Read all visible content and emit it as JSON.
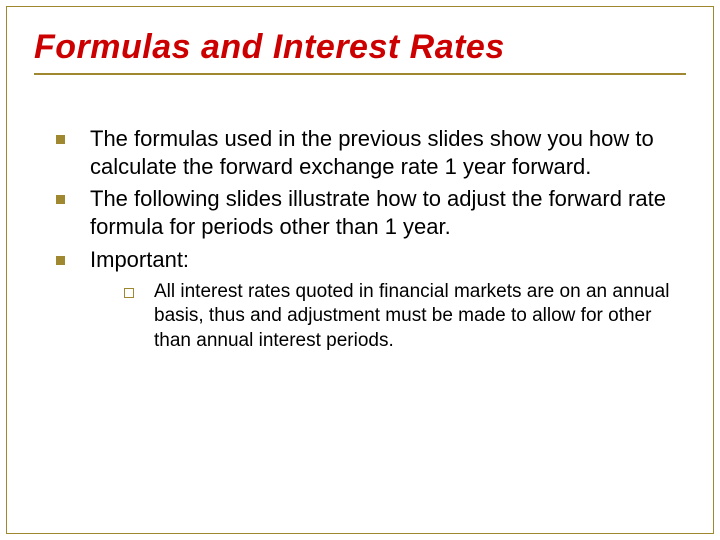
{
  "colors": {
    "border": "#a08830",
    "title": "#cc0000",
    "text": "#000000",
    "background": "#ffffff"
  },
  "typography": {
    "title_fontsize": 34,
    "title_weight": "bold",
    "title_style": "italic",
    "bullet_fontsize": 22,
    "sub_bullet_fontsize": 19,
    "font_family": "Arial"
  },
  "title": "Formulas and Interest Rates",
  "bullets": [
    "The formulas used in the previous slides show you how to calculate the forward exchange rate 1 year forward.",
    "The following slides illustrate how to adjust the forward rate formula for periods other than 1 year.",
    "Important:"
  ],
  "sub_bullets": [
    "All interest rates quoted in financial markets are on an annual basis, thus and adjustment must be made to allow for other than annual interest periods."
  ]
}
